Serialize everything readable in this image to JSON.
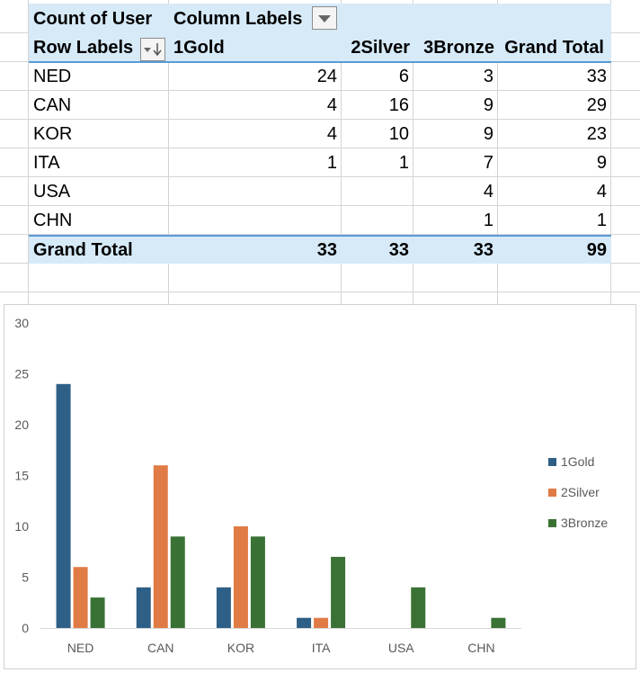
{
  "pivot": {
    "value_field": "Count of User",
    "column_labels": "Column Labels",
    "row_labels": "Row Labels",
    "columns": [
      "1Gold",
      "2Silver",
      "3Bronze",
      "Grand Total"
    ],
    "rows": [
      {
        "label": "NED",
        "gold": "24",
        "silver": "6",
        "bronze": "3",
        "total": "33"
      },
      {
        "label": "CAN",
        "gold": "4",
        "silver": "16",
        "bronze": "9",
        "total": "29"
      },
      {
        "label": "KOR",
        "gold": "4",
        "silver": "10",
        "bronze": "9",
        "total": "23"
      },
      {
        "label": "ITA",
        "gold": "1",
        "silver": "1",
        "bronze": "7",
        "total": "9"
      },
      {
        "label": "USA",
        "gold": "",
        "silver": "",
        "bronze": "4",
        "total": "4"
      },
      {
        "label": "CHN",
        "gold": "",
        "silver": "",
        "bronze": "1",
        "total": "1"
      }
    ],
    "grand_total": {
      "label": "Grand Total",
      "gold": "33",
      "silver": "33",
      "bronze": "33",
      "total": "99"
    }
  },
  "icons": {
    "column_filter": "dropdown-arrow-icon",
    "row_filter": "filter-sort-descending-icon"
  },
  "chart_data": {
    "type": "bar",
    "categories": [
      "NED",
      "CAN",
      "KOR",
      "ITA",
      "USA",
      "CHN"
    ],
    "series": [
      {
        "name": "1Gold",
        "color": "#2e5f86",
        "values": [
          24,
          4,
          4,
          1,
          0,
          0
        ]
      },
      {
        "name": "2Silver",
        "color": "#e07b45",
        "values": [
          6,
          16,
          10,
          1,
          0,
          0
        ]
      },
      {
        "name": "3Bronze",
        "color": "#3a7235",
        "values": [
          3,
          9,
          9,
          7,
          4,
          1
        ]
      }
    ],
    "ylim": [
      0,
      30
    ],
    "yticks": [
      "0",
      "5",
      "10",
      "15",
      "20",
      "25",
      "30"
    ],
    "grid": false,
    "legend": "right"
  }
}
